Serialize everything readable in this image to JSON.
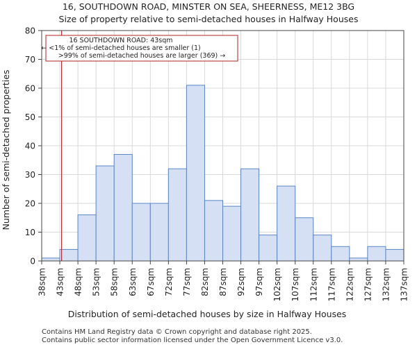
{
  "chart_data": {
    "type": "bar",
    "title": "16, SOUTHDOWN ROAD, MINSTER ON SEA, SHEERNESS, ME12 3BG",
    "subtitle": "Size of property relative to semi-detached houses in Halfway Houses",
    "xlabel": "Distribution of semi-detached houses by size in Halfway Houses",
    "ylabel": "Number of semi-detached properties",
    "ylim": [
      0,
      80
    ],
    "yticks": [
      0,
      10,
      20,
      30,
      40,
      50,
      60,
      70,
      80
    ],
    "xticks": [
      "38sqm",
      "43sqm",
      "48sqm",
      "53sqm",
      "58sqm",
      "63sqm",
      "67sqm",
      "72sqm",
      "77sqm",
      "82sqm",
      "87sqm",
      "92sqm",
      "97sqm",
      "102sqm",
      "107sqm",
      "112sqm",
      "117sqm",
      "122sqm",
      "127sqm",
      "132sqm",
      "137sqm"
    ],
    "values": [
      1,
      4,
      16,
      33,
      37,
      20,
      20,
      32,
      61,
      21,
      19,
      32,
      9,
      26,
      15,
      9,
      5,
      1,
      5,
      4
    ],
    "bar_fill": "#d6e0f4",
    "bar_stroke": "#5b84c4",
    "marker": {
      "value": 43,
      "bin_position": 1.1,
      "color": "#b22222",
      "annotation": [
        "16 SOUTHDOWN ROAD: 43sqm",
        "← <1% of semi-detached houses are smaller (1)",
        ">99% of semi-detached houses are larger (369) →"
      ]
    }
  },
  "footer": {
    "line1": "Contains HM Land Registry data © Crown copyright and database right 2025.",
    "line2": "Contains public sector information licensed under the Open Government Licence v3.0."
  }
}
